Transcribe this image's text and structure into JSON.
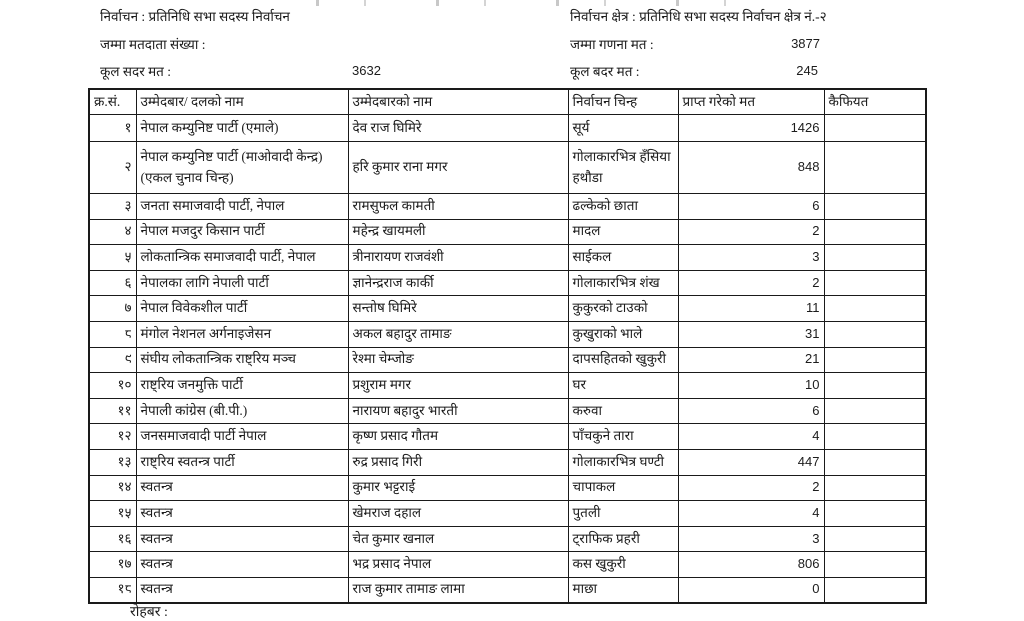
{
  "header": {
    "left": {
      "election_label": "निर्वाचन : प्रतिनिधि सभा सदस्य निर्वाचन",
      "total_voters_label": "जम्मा मतदाता संख्या :",
      "total_valid_label": "कूल सदर मत :",
      "total_valid_value": "3632"
    },
    "right": {
      "constituency_label": "निर्वाचन क्षेत्र : प्रतिनिधि सभा सदस्य निर्वाचन क्षेत्र नं.-२",
      "total_counted_label": "जम्मा गणना मत :",
      "total_counted_value": "3877",
      "total_invalid_label": "कूल बदर मत :",
      "total_invalid_value": "245"
    }
  },
  "table": {
    "columns": [
      "क्र.सं.",
      "उम्मेदबार/ दलको नाम",
      "उम्मेदबारको नाम",
      "निर्वाचन चिन्ह",
      "प्राप्त गरेको मत",
      "कैफियत"
    ],
    "rows": [
      {
        "sn": "१",
        "party": "नेपाल कम्युनिष्ट पार्टी (एमाले)",
        "candidate": "देव राज घिमिरे",
        "symbol": "सूर्य",
        "votes": "1426",
        "remarks": ""
      },
      {
        "sn": "२",
        "party": "नेपाल कम्युनिष्ट पार्टी (माओवादी केन्द्र)(एकल चुनाव चिन्ह)",
        "candidate": "हरि कुमार राना मगर",
        "symbol": "गोलाकारभित्र हँसिया हथौडा",
        "votes": "848",
        "remarks": ""
      },
      {
        "sn": "३",
        "party": "जनता समाजवादी पार्टी, नेपाल",
        "candidate": "रामसुफल कामती",
        "symbol": "ढल्केको छाता",
        "votes": "6",
        "remarks": ""
      },
      {
        "sn": "४",
        "party": "नेपाल मजदुर किसान पार्टी",
        "candidate": "महेन्द्र खायमली",
        "symbol": "मादल",
        "votes": "2",
        "remarks": ""
      },
      {
        "sn": "५",
        "party": "लोकतान्त्रिक समाजवादी पार्टी, नेपाल",
        "candidate": "त्रीनारायण राजवंशी",
        "symbol": "साईकल",
        "votes": "3",
        "remarks": ""
      },
      {
        "sn": "६",
        "party": "नेपालका लागि नेपाली पार्टी",
        "candidate": "ज्ञानेन्द्रराज कार्की",
        "symbol": "गोलाकारभित्र शंख",
        "votes": "2",
        "remarks": ""
      },
      {
        "sn": "७",
        "party": "नेपाल विवेकशील पार्टी",
        "candidate": "सन्तोष घिमिरे",
        "symbol": "कुकुरको टाउको",
        "votes": "11",
        "remarks": ""
      },
      {
        "sn": "८",
        "party": "मंगोल नेशनल अर्गनाइजेसन",
        "candidate": "अकल बहादुर तामाङ",
        "symbol": "कुखुराको भाले",
        "votes": "31",
        "remarks": ""
      },
      {
        "sn": "९",
        "party": "संघीय लोकतान्त्रिक राष्ट्रिय मञ्च",
        "candidate": "रेश्मा चेम्जोङ",
        "symbol": "दापसहितको खुकुरी",
        "votes": "21",
        "remarks": ""
      },
      {
        "sn": "१०",
        "party": "राष्ट्रिय जनमुक्ति पार्टी",
        "candidate": "प्रशुराम मगर",
        "symbol": "घर",
        "votes": "10",
        "remarks": ""
      },
      {
        "sn": "११",
        "party": "नेपाली कांग्रेस (बी.पी.)",
        "candidate": "नारायण बहादुर भारती",
        "symbol": "करुवा",
        "votes": "6",
        "remarks": ""
      },
      {
        "sn": "१२",
        "party": "जनसमाजवादी पार्टी नेपाल",
        "candidate": "कृष्ण प्रसाद गौतम",
        "symbol": "पाँचकुने तारा",
        "votes": "4",
        "remarks": ""
      },
      {
        "sn": "१३",
        "party": "राष्ट्रिय स्वतन्त्र पार्टी",
        "candidate": "रुद्र प्रसाद गिरी",
        "symbol": "गोलाकारभित्र घण्टी",
        "votes": "447",
        "remarks": ""
      },
      {
        "sn": "१४",
        "party": "स्वतन्त्र",
        "candidate": "कुमार भट्टराई",
        "symbol": "चापाकल",
        "votes": "2",
        "remarks": ""
      },
      {
        "sn": "१५",
        "party": "स्वतन्त्र",
        "candidate": "खेमराज दहाल",
        "symbol": "पुतली",
        "votes": "4",
        "remarks": ""
      },
      {
        "sn": "१६",
        "party": "स्वतन्त्र",
        "candidate": "चेत कुमार खनाल",
        "symbol": "ट्राफिक प्रहरी",
        "votes": "3",
        "remarks": ""
      },
      {
        "sn": "१७",
        "party": "स्वतन्त्र",
        "candidate": "भद्र प्रसाद नेपाल",
        "symbol": "कस खुकुरी",
        "votes": "806",
        "remarks": ""
      },
      {
        "sn": "१८",
        "party": "स्वतन्त्र",
        "candidate": "राज कुमार तामाङ लामा",
        "symbol": "माछा",
        "votes": "0",
        "remarks": ""
      }
    ]
  },
  "footer": {
    "partial_label": "रोहबर :"
  }
}
